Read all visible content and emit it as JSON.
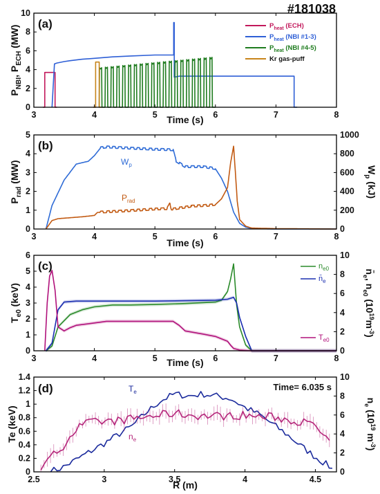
{
  "figure": {
    "shot_label": "#181038"
  },
  "chart_data": [
    {
      "id": "a",
      "type": "line",
      "panel_label": "(a)",
      "xlabel": "Time (s)",
      "ylabel": "PNBI, PECH (MW)",
      "xlim": [
        3,
        8
      ],
      "ylim": [
        0,
        10
      ],
      "xticks": [
        "3",
        "4",
        "5",
        "6",
        "7",
        "8"
      ],
      "yticks": [
        "0",
        "2",
        "4",
        "6",
        "8",
        "10"
      ],
      "legend_position": "top-right",
      "series": [
        {
          "name": "Pheat (ECH)",
          "color": "#c2185b",
          "x": [
            3.15,
            3.18,
            3.18,
            3.35,
            3.35,
            3.38
          ],
          "y": [
            0,
            0,
            3.7,
            3.7,
            0,
            0
          ]
        },
        {
          "name": "Pheat (NBI #1-3)",
          "color": "#2e5fd6",
          "x": [
            3.3,
            3.34,
            3.38,
            3.5,
            3.6,
            3.8,
            4.0,
            4.3,
            4.6,
            5.0,
            5.3,
            5.31,
            5.31,
            5.32,
            5.32,
            5.4,
            6.0,
            6.5,
            7.0,
            7.3,
            7.3,
            7.35
          ],
          "y": [
            0,
            4.6,
            4.7,
            4.85,
            4.95,
            5.1,
            5.2,
            5.35,
            5.45,
            5.55,
            5.55,
            5.55,
            9.0,
            9.0,
            3.2,
            3.3,
            3.3,
            3.3,
            3.3,
            3.3,
            0,
            0
          ]
        },
        {
          "name": "Pheat (NBI #4-5)",
          "color": "#1e7b1e",
          "modulation": {
            "start": 4.08,
            "end": 6.0,
            "pulses": 20,
            "duty": 0.42,
            "y_start": 4.2,
            "y_end": 5.3
          }
        },
        {
          "name": "Kr gas-puff",
          "color": "#c8841a",
          "x": [
            3.98,
            4.02,
            4.02,
            4.08,
            4.08,
            4.12
          ],
          "y": [
            0,
            0,
            4.8,
            4.8,
            0,
            0
          ]
        }
      ]
    },
    {
      "id": "b",
      "type": "line",
      "panel_label": "(b)",
      "xlabel": "Time (s)",
      "ylabel": "Prad (MW)",
      "y2label": "Wp (kJ)",
      "xlim": [
        3,
        8
      ],
      "ylim": [
        0,
        5
      ],
      "y2lim": [
        0,
        1000
      ],
      "xticks": [
        "3",
        "4",
        "5",
        "6",
        "7",
        "8"
      ],
      "yticks": [
        "0",
        "1",
        "2",
        "3",
        "4",
        "5"
      ],
      "y2ticks": [
        "0",
        "200",
        "400",
        "600",
        "800",
        "1000"
      ],
      "series": [
        {
          "name": "Wp",
          "axis": "right",
          "color": "#2e6bd6",
          "x": [
            3.2,
            3.3,
            3.5,
            3.7,
            3.9,
            4.0,
            4.1,
            4.2,
            4.5,
            5.0,
            5.3,
            5.35,
            5.5,
            5.8,
            6.0,
            6.1,
            6.2,
            6.3,
            6.4,
            6.5,
            6.6,
            7.0,
            8.0
          ],
          "y": [
            0,
            250,
            520,
            690,
            720,
            780,
            860,
            870,
            860,
            845,
            840,
            720,
            660,
            660,
            640,
            540,
            400,
            180,
            60,
            20,
            5,
            0,
            0
          ],
          "ripple": {
            "start": 4.1,
            "end": 6.0,
            "amplitude": 12,
            "period": 0.1
          }
        },
        {
          "name": "Prad",
          "axis": "left",
          "color": "#c25a12",
          "x": [
            3.2,
            3.3,
            3.4,
            3.6,
            3.8,
            4.0,
            4.05,
            4.5,
            5.0,
            5.2,
            5.25,
            5.27,
            5.3,
            5.6,
            5.9,
            6.0,
            6.1,
            6.2,
            6.25,
            6.3,
            6.33,
            6.36,
            6.4,
            6.5,
            6.6,
            7.0,
            8.0
          ],
          "y": [
            0,
            0.45,
            0.55,
            0.6,
            0.65,
            0.72,
            0.88,
            0.95,
            1.05,
            1.07,
            1.35,
            1.05,
            1.05,
            1.2,
            1.25,
            1.3,
            1.6,
            2.2,
            3.5,
            4.4,
            3.0,
            1.5,
            0.5,
            0.15,
            0.05,
            0.02,
            0
          ],
          "ripple": {
            "start": 4.1,
            "end": 6.0,
            "amplitude": 0.06,
            "period": 0.1
          }
        }
      ],
      "annotations": [
        "Wp",
        "Prad"
      ]
    },
    {
      "id": "c",
      "type": "line",
      "panel_label": "(c)",
      "xlabel": "Time (s)",
      "ylabel": "Te0 (keV)",
      "y2label": "n̄e, ne0 (10¹⁹m⁻³)",
      "xlim": [
        3,
        8
      ],
      "ylim": [
        0,
        6
      ],
      "y2lim": [
        0,
        10
      ],
      "xticks": [
        "3",
        "4",
        "5",
        "6",
        "7",
        "8"
      ],
      "yticks": [
        "0",
        "1",
        "2",
        "3",
        "4",
        "5",
        "6"
      ],
      "y2ticks": [
        "0",
        "2",
        "4",
        "6",
        "8",
        "10"
      ],
      "legend_position": "top-right",
      "series": [
        {
          "name": "ne0",
          "axis": "right",
          "color": "#2a8a2a",
          "x": [
            3.2,
            3.3,
            3.4,
            3.6,
            3.8,
            4.0,
            4.3,
            4.6,
            5.0,
            5.5,
            6.0,
            6.1,
            6.2,
            6.25,
            6.3,
            6.35,
            6.4,
            6.5,
            6.6,
            8.0
          ],
          "y": [
            0,
            0.5,
            2.5,
            3.8,
            4.3,
            4.6,
            4.8,
            4.8,
            4.85,
            4.95,
            5.1,
            5.3,
            6.2,
            7.5,
            9.1,
            4.8,
            2.5,
            0.6,
            0,
            0
          ]
        },
        {
          "name": "n̄e",
          "axis": "right",
          "color": "#1a2eb0",
          "x": [
            3.2,
            3.3,
            3.4,
            3.5,
            3.7,
            4.0,
            4.5,
            5.0,
            5.5,
            6.0,
            6.2,
            6.3,
            6.35,
            6.4,
            6.5,
            6.6,
            8.0
          ],
          "y": [
            0,
            0.8,
            4.3,
            5.1,
            5.2,
            5.2,
            5.2,
            5.2,
            5.25,
            5.3,
            5.4,
            5.6,
            5.0,
            3.5,
            1.5,
            0,
            0
          ]
        },
        {
          "name": "Te0",
          "axis": "left",
          "color": "#b0107a",
          "x": [
            3.18,
            3.22,
            3.26,
            3.3,
            3.35,
            3.4,
            3.5,
            3.6,
            3.7,
            4.0,
            4.2,
            4.5,
            5.0,
            5.3,
            5.4,
            5.5,
            5.8,
            6.0,
            6.2,
            6.25,
            6.3,
            6.4,
            6.6,
            8.0
          ],
          "y": [
            0,
            3.0,
            4.7,
            5.05,
            3.8,
            1.5,
            1.25,
            1.45,
            1.6,
            1.75,
            1.85,
            1.85,
            1.85,
            1.85,
            1.6,
            1.25,
            1.05,
            0.9,
            0.6,
            0.35,
            0.15,
            0.05,
            0,
            0
          ]
        }
      ]
    },
    {
      "id": "d",
      "type": "line",
      "panel_label": "(d)",
      "xlabel": "R (m)",
      "ylabel": "Te (keV)",
      "y2label": "ne (10¹⁹ m⁻³)",
      "time_label": "Time= 6.035 s",
      "xlim": [
        2.5,
        4.65
      ],
      "ylim": [
        0,
        1.4
      ],
      "y2lim": [
        0,
        10
      ],
      "xticks": [
        "2.5",
        "3",
        "3.5",
        "4",
        "4.5"
      ],
      "yticks": [
        "0",
        "0.2",
        "0.4",
        "0.6",
        "0.8",
        "1",
        "1.2",
        "1.4"
      ],
      "y2ticks": [
        "0",
        "2",
        "4",
        "6",
        "8",
        "10"
      ],
      "series": [
        {
          "name": "Te",
          "axis": "left",
          "color": "#1a2a9c",
          "x": [
            2.62,
            2.7,
            2.8,
            2.9,
            3.0,
            3.1,
            3.2,
            3.3,
            3.4,
            3.5,
            3.6,
            3.7,
            3.8,
            3.9,
            4.0,
            4.1,
            4.2,
            4.3,
            4.4,
            4.5,
            4.6,
            4.62
          ],
          "y": [
            0.01,
            0.06,
            0.18,
            0.3,
            0.42,
            0.55,
            0.68,
            0.88,
            1.05,
            1.15,
            1.12,
            1.15,
            1.12,
            1.08,
            0.95,
            0.85,
            0.7,
            0.55,
            0.38,
            0.22,
            0.08,
            0.04
          ],
          "jitter": 0.05
        },
        {
          "name": "ne",
          "axis": "right",
          "color": "#b5257a",
          "x": [
            2.55,
            2.6,
            2.65,
            2.7,
            2.75,
            2.8,
            2.85,
            2.9,
            3.0,
            3.1,
            3.2,
            3.3,
            3.4,
            3.5,
            3.6,
            3.7,
            3.8,
            3.9,
            4.0,
            4.1,
            4.2,
            4.3,
            4.4,
            4.5,
            4.55,
            4.6
          ],
          "y": [
            0.5,
            1.0,
            2.0,
            2.6,
            3.6,
            4.5,
            5.0,
            5.2,
            5.3,
            5.4,
            5.6,
            5.8,
            6.0,
            6.2,
            6.0,
            5.9,
            5.9,
            5.9,
            6.0,
            5.8,
            5.8,
            5.5,
            5.3,
            4.8,
            4.0,
            3.2
          ],
          "error": 0.6,
          "jitter": 0.45
        }
      ],
      "annotations": [
        "Te",
        "ne"
      ]
    }
  ]
}
